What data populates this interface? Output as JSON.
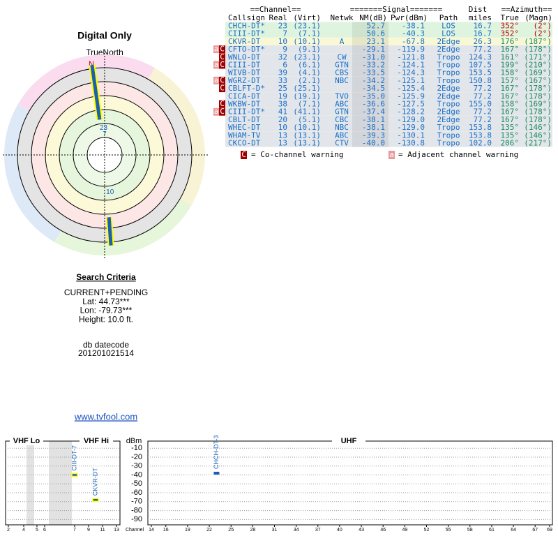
{
  "polar": {
    "title": "Digital Only",
    "north_label": "TrueNorth",
    "north_mark": "N",
    "beams": [
      {
        "label": "23",
        "azimuth": 352,
        "nm": 52.7
      },
      {
        "label": "7",
        "azimuth": 352,
        "nm": 50.6
      },
      {
        "label": "10",
        "azimuth": 176,
        "nm": 23.1
      }
    ],
    "beam_color": "#1a5fb4",
    "beam_outline": "#ffff00"
  },
  "table": {
    "groups": [
      "==Channel==",
      "=======Signal=======",
      "Dist",
      "==Azimuth=="
    ],
    "columns": [
      "Callsign",
      "Real",
      "(Virt)",
      "Netwk",
      "NM(dB)",
      "Pwr(dBm)",
      "Path",
      "miles",
      "True",
      "(Magn)"
    ],
    "rows": [
      {
        "callsign": "CHCH-DT*",
        "real": "23",
        "virt": "(23.1)",
        "nm": "52.7",
        "pwr": "-38.1",
        "path": "LOS",
        "dist": "16.7",
        "true": "352°",
        "magn": "(2°)",
        "row_color": "#def4de",
        "azimuth_color": "#c00000"
      },
      {
        "callsign": "CIII-DT*",
        "real": "7",
        "virt": "(7.1)",
        "nm": "50.6",
        "pwr": "-40.3",
        "path": "LOS",
        "dist": "16.7",
        "true": "352°",
        "magn": "(2°)",
        "row_color": "#def4de",
        "azimuth_color": "#c00000"
      },
      {
        "callsign": "CKVR-DT",
        "real": "10",
        "virt": "(10.1)",
        "netwk": "A",
        "nm": "23.1",
        "pwr": "-67.8",
        "path": "2Edge",
        "dist": "26.3",
        "true": "176°",
        "magn": "(187°)",
        "row_color": "#f8f8d6",
        "azimuth_color": "#1a8a5a"
      },
      {
        "callsign": "CFTO-DT*",
        "real": "9",
        "virt": "(9.1)",
        "nm": "-29.1",
        "pwr": "-119.9",
        "path": "2Edge",
        "dist": "77.2",
        "true": "167°",
        "magn": "(178°)",
        "row_color": "#e2e6ea",
        "azimuth_color": "#1a8a5a",
        "adj": "a",
        "co": "C"
      },
      {
        "callsign": "WNLO-DT",
        "real": "32",
        "virt": "(23.1)",
        "netwk": "CW",
        "nm": "-31.0",
        "pwr": "-121.8",
        "path": "Tropo",
        "dist": "124.3",
        "true": "161°",
        "magn": "(171°)",
        "row_color": "#e2e6ea",
        "azimuth_color": "#1a8a5a",
        "co": "C"
      },
      {
        "callsign": "CIII-DT",
        "real": "6",
        "virt": "(6.1)",
        "netwk": "GTN",
        "nm": "-33.2",
        "pwr": "-124.1",
        "path": "Tropo",
        "dist": "107.5",
        "true": "199°",
        "magn": "(210°)",
        "row_color": "#e2e6ea",
        "azimuth_color": "#1a8a5a",
        "adj": "a",
        "co": "C"
      },
      {
        "callsign": "WIVB-DT",
        "real": "39",
        "virt": "(4.1)",
        "netwk": "CBS",
        "nm": "-33.5",
        "pwr": "-124.3",
        "path": "Tropo",
        "dist": "153.5",
        "true": "158°",
        "magn": "(169°)",
        "row_color": "#e2e6ea",
        "azimuth_color": "#1a8a5a"
      },
      {
        "callsign": "WGRZ-DT",
        "real": "33",
        "virt": "(2.1)",
        "netwk": "NBC",
        "nm": "-34.2",
        "pwr": "-125.1",
        "path": "Tropo",
        "dist": "150.8",
        "true": "157°",
        "magn": "(167°)",
        "row_color": "#e2e6ea",
        "azimuth_color": "#1a8a5a",
        "adj": "a",
        "co": "C"
      },
      {
        "callsign": "CBLFT-D*",
        "real": "25",
        "virt": "(25.1)",
        "nm": "-34.5",
        "pwr": "-125.4",
        "path": "2Edge",
        "dist": "77.2",
        "true": "167°",
        "magn": "(178°)",
        "row_color": "#e2e6ea",
        "azimuth_color": "#1a8a5a",
        "co": "C"
      },
      {
        "callsign": "CICA-DT",
        "real": "19",
        "virt": "(19.1)",
        "netwk": "TVO",
        "nm": "-35.0",
        "pwr": "-125.9",
        "path": "2Edge",
        "dist": "77.2",
        "true": "167°",
        "magn": "(178°)",
        "row_color": "#e2e6ea",
        "azimuth_color": "#1a8a5a"
      },
      {
        "callsign": "WKBW-DT",
        "real": "38",
        "virt": "(7.1)",
        "netwk": "ABC",
        "nm": "-36.6",
        "pwr": "-127.5",
        "path": "Tropo",
        "dist": "155.0",
        "true": "158°",
        "magn": "(169°)",
        "row_color": "#e2e6ea",
        "azimuth_color": "#1a8a5a",
        "co": "C"
      },
      {
        "callsign": "CIII-DT*",
        "real": "41",
        "virt": "(41.1)",
        "netwk": "GTN",
        "nm": "-37.4",
        "pwr": "-128.2",
        "path": "2Edge",
        "dist": "77.2",
        "true": "167°",
        "magn": "(178°)",
        "row_color": "#e2e6ea",
        "azimuth_color": "#1a8a5a",
        "adj": "a",
        "co": "C"
      },
      {
        "callsign": "CBLT-DT",
        "real": "20",
        "virt": "(5.1)",
        "netwk": "CBC",
        "nm": "-38.1",
        "pwr": "-129.0",
        "path": "2Edge",
        "dist": "77.2",
        "true": "167°",
        "magn": "(178°)",
        "row_color": "#e2e6ea",
        "azimuth_color": "#1a8a5a"
      },
      {
        "callsign": "WHEC-DT",
        "real": "10",
        "virt": "(10.1)",
        "netwk": "NBC",
        "nm": "-38.1",
        "pwr": "-129.0",
        "path": "Tropo",
        "dist": "153.8",
        "true": "135°",
        "magn": "(146°)",
        "row_color": "#e2e6ea",
        "azimuth_color": "#1a8a5a"
      },
      {
        "callsign": "WHAM-TV",
        "real": "13",
        "virt": "(13.1)",
        "netwk": "ABC",
        "nm": "-39.3",
        "pwr": "-130.1",
        "path": "Tropo",
        "dist": "153.8",
        "true": "135°",
        "magn": "(146°)",
        "row_color": "#e2e6ea",
        "azimuth_color": "#1a8a5a"
      },
      {
        "callsign": "CKCO-DT",
        "real": "13",
        "virt": "(13.1)",
        "netwk": "CTV",
        "nm": "-40.0",
        "pwr": "-130.8",
        "path": "Tropo",
        "dist": "102.0",
        "true": "206°",
        "magn": "(217°)",
        "row_color": "#e2e6ea",
        "azimuth_color": "#1a8a5a"
      }
    ]
  },
  "legend": {
    "co_icon": "C",
    "co_text": "= Co-channel warning",
    "adj_icon": "a",
    "adj_text": "= Adjacent channel warning"
  },
  "search": {
    "title": "Search Criteria",
    "lines": [
      "CURRENT+PENDING",
      "Lat: 44.73***",
      "Lon: -79.73***",
      "Height: 10.0 ft."
    ],
    "datecode_label": "db datecode",
    "datecode": "201201021514"
  },
  "link": "www.tvfool.com",
  "spectrum": {
    "sections": [
      "VHF Lo",
      "VHF Hi",
      "UHF"
    ],
    "y_label": "dBm",
    "x_label": "Channel",
    "ylim": [
      -2,
      -96
    ],
    "yticks": [
      -10,
      -20,
      -30,
      -40,
      -50,
      -60,
      -70,
      -80,
      -90
    ],
    "vhf_ticks": [
      2,
      4,
      5,
      6,
      7,
      9,
      11,
      13
    ],
    "uhf_ticks": [
      14,
      16,
      19,
      22,
      25,
      28,
      31,
      34,
      37,
      40,
      43,
      46,
      49,
      52,
      55,
      58,
      61,
      64,
      67,
      69
    ],
    "markers": [
      {
        "label": "CIII-DT-7",
        "channel": 7,
        "dbm": -40,
        "outline": "#ffff00"
      },
      {
        "label": "CKVR-DT",
        "channel": 10,
        "dbm": -68,
        "outline": "#ffff00"
      },
      {
        "label": "CHCH-DT-3",
        "channel": 23,
        "dbm": -38
      }
    ],
    "marker_color": "#1a5fb4"
  }
}
